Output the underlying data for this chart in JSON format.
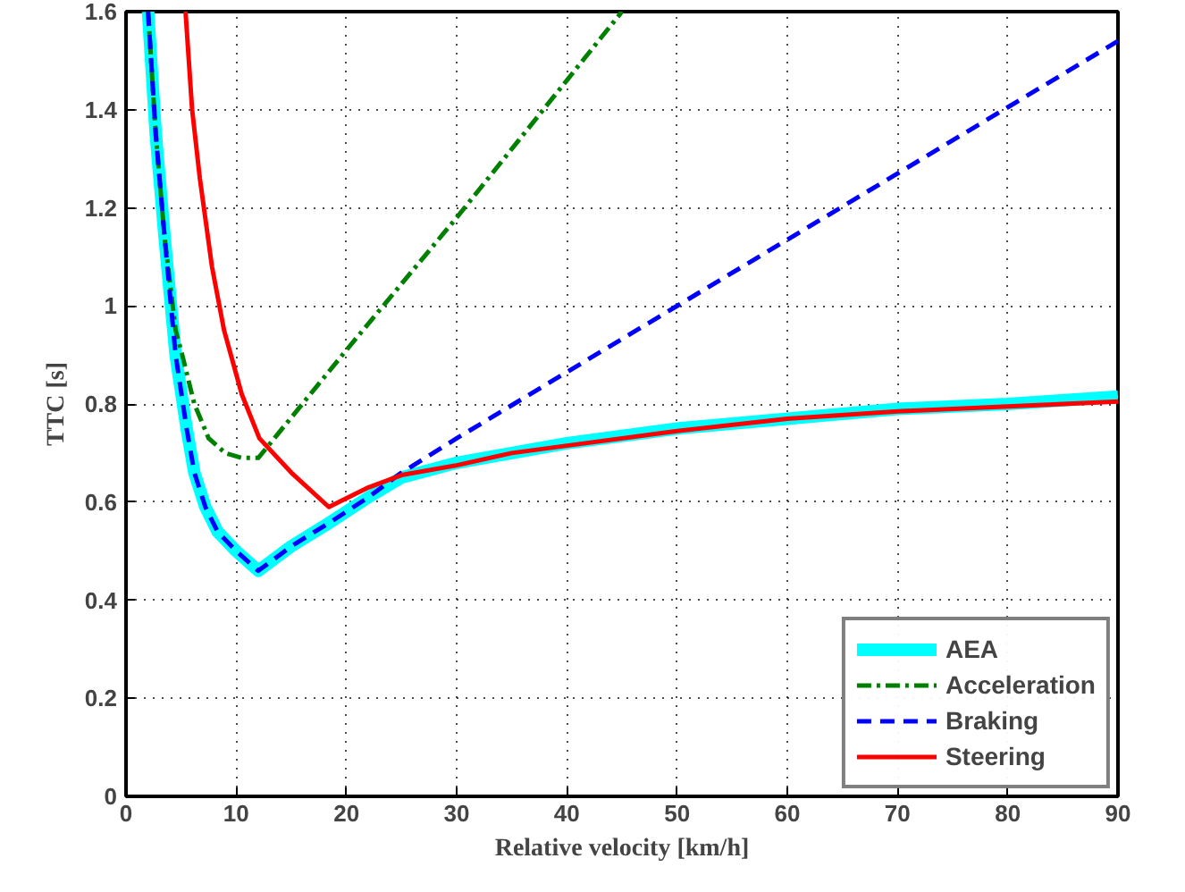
{
  "chart_data": {
    "type": "line",
    "xlabel": "Relative velocity [km/h]",
    "ylabel": "TTC [s]",
    "xlim": [
      0,
      90
    ],
    "ylim": [
      0,
      1.6
    ],
    "xticks": [
      0,
      10,
      20,
      30,
      40,
      50,
      60,
      70,
      80,
      90
    ],
    "yticks": [
      0,
      0.2,
      0.4,
      0.6,
      0.8,
      1,
      1.2,
      1.4,
      1.6
    ],
    "grid": true,
    "legend": "bottom right",
    "series": [
      {
        "name": "AEA",
        "color": "#00ffff",
        "line_style": "solid",
        "x": [
          2.0,
          2.7,
          3.5,
          4.5,
          5.5,
          6.2,
          7.2,
          8.3,
          10,
          12,
          15,
          18.6,
          22,
          25,
          30,
          35,
          40,
          50,
          60,
          70,
          80,
          90
        ],
        "values": [
          1.6,
          1.35,
          1.14,
          0.9,
          0.75,
          0.66,
          0.59,
          0.54,
          0.5,
          0.46,
          0.51,
          0.56,
          0.61,
          0.65,
          0.68,
          0.7,
          0.72,
          0.75,
          0.77,
          0.79,
          0.8,
          0.815
        ]
      },
      {
        "name": "Acceleration",
        "color": "#008000",
        "line_style": "dashdot",
        "x": [
          2.0,
          2.7,
          3.5,
          4.5,
          5.1,
          6.2,
          7.5,
          9,
          10.5,
          12,
          20,
          30,
          40,
          45
        ],
        "values": [
          1.6,
          1.35,
          1.14,
          0.95,
          0.9,
          0.8,
          0.73,
          0.7,
          0.69,
          0.69,
          0.91,
          1.18,
          1.46,
          1.6
        ]
      },
      {
        "name": "Braking",
        "color": "#0000ff",
        "line_style": "dashed",
        "x": [
          2.0,
          2.7,
          3.5,
          4.5,
          5.5,
          6.2,
          7.2,
          8.3,
          10,
          12,
          15,
          18.6,
          22,
          25,
          30,
          40,
          50,
          60,
          70,
          80,
          90
        ],
        "values": [
          1.6,
          1.35,
          1.14,
          0.9,
          0.75,
          0.66,
          0.59,
          0.54,
          0.5,
          0.46,
          0.51,
          0.56,
          0.61,
          0.66,
          0.73,
          0.865,
          1.0,
          1.135,
          1.27,
          1.405,
          1.54
        ]
      },
      {
        "name": "Steering",
        "color": "#ff0000",
        "line_style": "solid",
        "x": [
          5.4,
          6.0,
          6.7,
          7.8,
          8.9,
          10.5,
          12.1,
          15,
          18.4,
          22,
          25,
          30,
          35,
          40,
          50,
          60,
          70,
          80,
          90
        ],
        "values": [
          1.6,
          1.4,
          1.26,
          1.08,
          0.95,
          0.82,
          0.73,
          0.66,
          0.59,
          0.63,
          0.655,
          0.675,
          0.7,
          0.715,
          0.745,
          0.77,
          0.785,
          0.795,
          0.805
        ]
      }
    ]
  }
}
